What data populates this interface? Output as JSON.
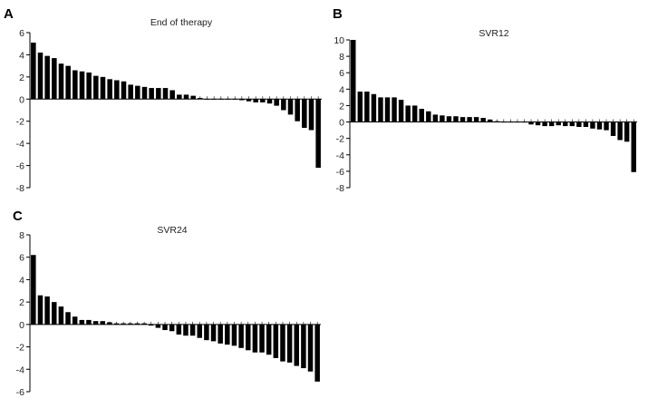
{
  "chart_data": [
    {
      "panel": "A",
      "type": "bar",
      "title": "End of therapy",
      "ylim": [
        -8,
        6
      ],
      "yticks": [
        -8,
        -6,
        -4,
        -2,
        0,
        2,
        4,
        6
      ],
      "values": [
        5.1,
        4.2,
        3.9,
        3.7,
        3.2,
        3.0,
        2.6,
        2.5,
        2.4,
        2.1,
        2.0,
        1.8,
        1.7,
        1.6,
        1.3,
        1.2,
        1.1,
        1.0,
        1.0,
        1.0,
        0.8,
        0.4,
        0.4,
        0.3,
        0.1,
        0.0,
        0.0,
        0.0,
        0.0,
        -0.05,
        -0.1,
        -0.2,
        -0.3,
        -0.3,
        -0.4,
        -0.6,
        -1.0,
        -1.4,
        -2.0,
        -2.6,
        -2.8,
        -6.2
      ]
    },
    {
      "panel": "B",
      "type": "bar",
      "title": "SVR12",
      "ylim": [
        -8,
        10
      ],
      "yticks": [
        -8,
        -6,
        -4,
        -2,
        0,
        2,
        4,
        6,
        8,
        10
      ],
      "values": [
        10.0,
        3.7,
        3.7,
        3.4,
        3.0,
        3.0,
        3.0,
        2.7,
        2.0,
        2.0,
        1.6,
        1.3,
        0.9,
        0.8,
        0.7,
        0.7,
        0.6,
        0.6,
        0.6,
        0.5,
        0.3,
        0.1,
        0.0,
        0.0,
        0.0,
        0.0,
        -0.3,
        -0.4,
        -0.5,
        -0.5,
        -0.4,
        -0.5,
        -0.5,
        -0.6,
        -0.6,
        -0.8,
        -0.9,
        -1.0,
        -1.7,
        -2.2,
        -2.4,
        -6.1
      ]
    },
    {
      "panel": "C",
      "type": "bar",
      "title": "SVR24",
      "ylim": [
        -6,
        8
      ],
      "yticks": [
        -6,
        -4,
        -2,
        0,
        2,
        4,
        6,
        8
      ],
      "values": [
        6.2,
        2.6,
        2.5,
        2.0,
        1.6,
        1.1,
        0.7,
        0.4,
        0.4,
        0.3,
        0.3,
        0.2,
        0.1,
        0.1,
        0.1,
        0.1,
        0.1,
        -0.1,
        -0.3,
        -0.5,
        -0.6,
        -0.9,
        -1.0,
        -1.0,
        -1.2,
        -1.4,
        -1.5,
        -1.7,
        -1.8,
        -1.9,
        -2.1,
        -2.3,
        -2.5,
        -2.5,
        -2.7,
        -3.0,
        -3.3,
        -3.4,
        -3.7,
        -3.9,
        -4.2,
        -5.1
      ]
    }
  ]
}
